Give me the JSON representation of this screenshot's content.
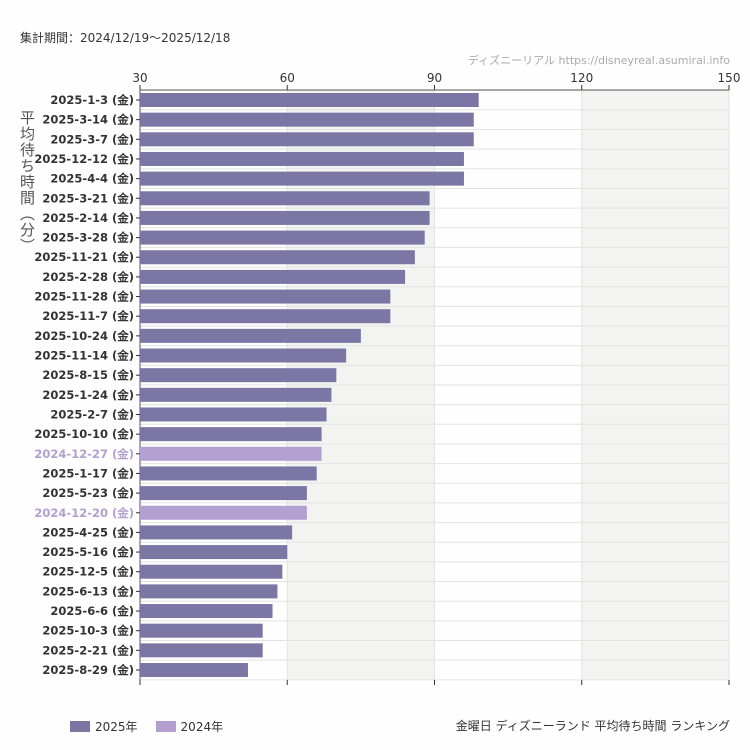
{
  "header": {
    "period": "集計期間：2024/12/19〜2025/12/18",
    "credit": "ディズニーリアル https://disneyreal.asumirai.info"
  },
  "footer": {
    "title": "金曜日 ディズニーランド 平均待ち時間 ランキング"
  },
  "colors": {
    "2025年": "#7b76a4",
    "2024年": "#b3a0d0"
  },
  "chart_data": {
    "type": "bar",
    "orientation": "horizontal",
    "title": "金曜日 ディズニーランド 平均待ち時間 ランキング",
    "ylabel": "平均待ち時間（分）",
    "xlim": [
      30,
      150
    ],
    "xticks": [
      30,
      60,
      90,
      120,
      150
    ],
    "grid": true,
    "legend_position": "bottom-left",
    "legend": [
      "2025年",
      "2024年"
    ],
    "categories": [
      "2025-1-3 (金)",
      "2025-3-14 (金)",
      "2025-3-7 (金)",
      "2025-12-12 (金)",
      "2025-4-4 (金)",
      "2025-3-21 (金)",
      "2025-2-14 (金)",
      "2025-3-28 (金)",
      "2025-11-21 (金)",
      "2025-2-28 (金)",
      "2025-11-28 (金)",
      "2025-11-7 (金)",
      "2025-10-24 (金)",
      "2025-11-14 (金)",
      "2025-8-15 (金)",
      "2025-1-24 (金)",
      "2025-2-7 (金)",
      "2025-10-10 (金)",
      "2024-12-27 (金)",
      "2025-1-17 (金)",
      "2025-5-23 (金)",
      "2024-12-20 (金)",
      "2025-4-25 (金)",
      "2025-5-16 (金)",
      "2025-12-5 (金)",
      "2025-6-13 (金)",
      "2025-6-6 (金)",
      "2025-10-3 (金)",
      "2025-2-21 (金)",
      "2025-8-29 (金)"
    ],
    "values": [
      99,
      98,
      98,
      96,
      96,
      89,
      89,
      88,
      86,
      84,
      81,
      81,
      75,
      72,
      70,
      69,
      68,
      67,
      67,
      66,
      64,
      64,
      61,
      60,
      59,
      58,
      57,
      55,
      55,
      52
    ],
    "year": [
      "2025年",
      "2025年",
      "2025年",
      "2025年",
      "2025年",
      "2025年",
      "2025年",
      "2025年",
      "2025年",
      "2025年",
      "2025年",
      "2025年",
      "2025年",
      "2025年",
      "2025年",
      "2025年",
      "2025年",
      "2025年",
      "2024年",
      "2025年",
      "2025年",
      "2024年",
      "2025年",
      "2025年",
      "2025年",
      "2025年",
      "2025年",
      "2025年",
      "2025年",
      "2025年"
    ]
  }
}
